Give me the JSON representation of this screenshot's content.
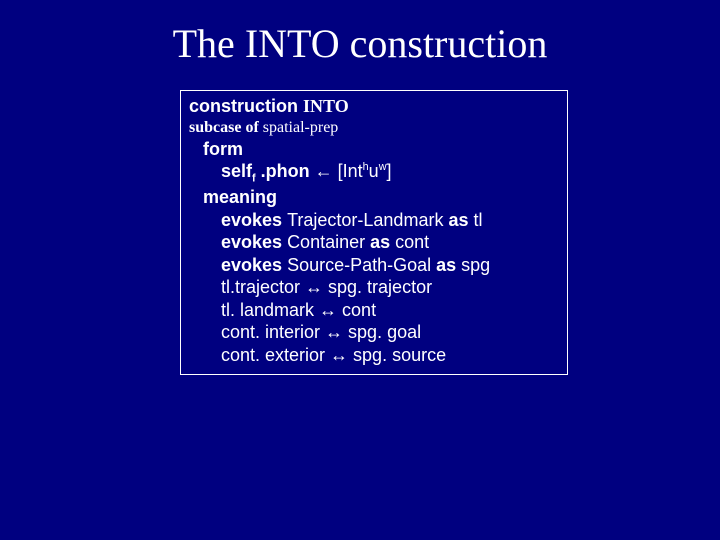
{
  "title": {
    "part1": "The ",
    "part2": "INTO",
    "part3": " construction"
  },
  "box": {
    "header_kw": "construction ",
    "header_name": "INTO",
    "subcase_kw": "subcase of",
    "subcase_val": "  spatial-prep",
    "form_label": "form",
    "form_self": "self",
    "form_sub": "f",
    "form_mid": " .phon ",
    "form_arrow": "←",
    "form_br_open": " [",
    "form_phon1": "Int",
    "form_sup1": "h",
    "form_phon2": "u",
    "form_sup2": "w",
    "form_br_close": "]",
    "meaning_label": "meaning",
    "evokes_kw": "evokes ",
    "as_kw": " as ",
    "evokes1_type": "Trajector-Landmark",
    "evokes1_var": "tl",
    "evokes2_type": "Container",
    "evokes2_var": "cont",
    "evokes3_type": "Source-Path-Goal",
    "evokes3_var": "spg",
    "c1_left": "tl.trajector   ",
    "c1_arrow": "↔",
    "c1_right": "   spg. trajector",
    "c2_left": "tl. landmark   ",
    "c2_arrow": "↔",
    "c2_right": "    cont",
    "c3_left": "cont. interior  ",
    "c3_arrow": "↔",
    "c3_right": "    spg. goal",
    "c4_left": "cont. exterior  ",
    "c4_arrow": "↔",
    "c4_right": "    spg. source"
  },
  "colors": {
    "background": "#000080",
    "text": "#ffffff",
    "border": "#ffffff"
  }
}
